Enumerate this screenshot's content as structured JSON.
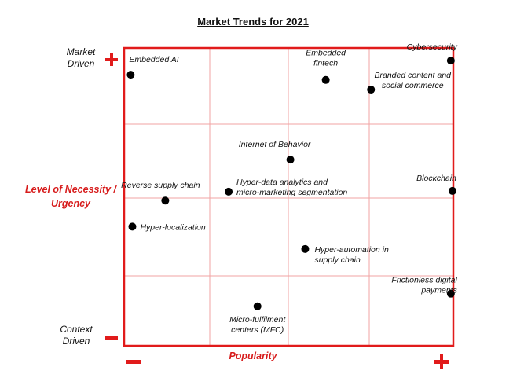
{
  "chart_data": {
    "type": "scatter",
    "title": "Market Trends for 2021",
    "xlabel": "Popularity",
    "ylabel": [
      "Level of Necessity /",
      "Urgency"
    ],
    "y_top_label": [
      "Market",
      "Driven"
    ],
    "y_bottom_label": [
      "Context",
      "Driven"
    ],
    "xlim": [
      0,
      4
    ],
    "ylim": [
      0,
      4
    ],
    "grid": true,
    "points": [
      {
        "label": [
          "Embedded  AI"
        ],
        "x": 0.08,
        "y": 3.64,
        "anchor": "start",
        "dx": -2,
        "dy": -16
      },
      {
        "label": [
          "Embedded",
          "fintech"
        ],
        "x": 2.45,
        "y": 3.57,
        "anchor": "middle",
        "dx": 0,
        "dy": -31
      },
      {
        "label": [
          "Cybersecurity"
        ],
        "x": 3.97,
        "y": 3.83,
        "anchor": "end",
        "dx": 8,
        "dy": -14
      },
      {
        "label": [
          "Branded content and",
          "social commerce"
        ],
        "x": 3.0,
        "y": 3.44,
        "anchor": "middle",
        "dx": 53,
        "dy": -15
      },
      {
        "label": [
          "Internet of Behavior"
        ],
        "x": 2.02,
        "y": 2.5,
        "anchor": "middle",
        "dx": -20,
        "dy": -16
      },
      {
        "label": [
          "Reverse supply chain"
        ],
        "x": 0.5,
        "y": 1.95,
        "anchor": "middle",
        "dx": -6,
        "dy": -16
      },
      {
        "label": [
          "Hyper-data analytics and",
          "micro-marketing segmentation"
        ],
        "x": 1.27,
        "y": 2.07,
        "anchor": "start",
        "dx": 10,
        "dy": -9
      },
      {
        "label": [
          "Blockchain"
        ],
        "x": 3.99,
        "y": 2.08,
        "anchor": "end",
        "dx": 5,
        "dy": -13
      },
      {
        "label": [
          "Hyper-localization"
        ],
        "x": 0.1,
        "y": 1.6,
        "anchor": "start",
        "dx": 10,
        "dy": 4
      },
      {
        "label": [
          "Hyper-automation in",
          "supply chain"
        ],
        "x": 2.2,
        "y": 1.3,
        "anchor": "start",
        "dx": 12,
        "dy": 4
      },
      {
        "label": [
          "Frictionless digital",
          "payments"
        ],
        "x": 3.97,
        "y": 0.7,
        "anchor": "end",
        "dx": 8,
        "dy": -14
      },
      {
        "label": [
          "Micro-fulfilment",
          "centers (MFC)"
        ],
        "x": 1.62,
        "y": 0.53,
        "anchor": "middle",
        "dx": 0,
        "dy": 20
      }
    ]
  }
}
